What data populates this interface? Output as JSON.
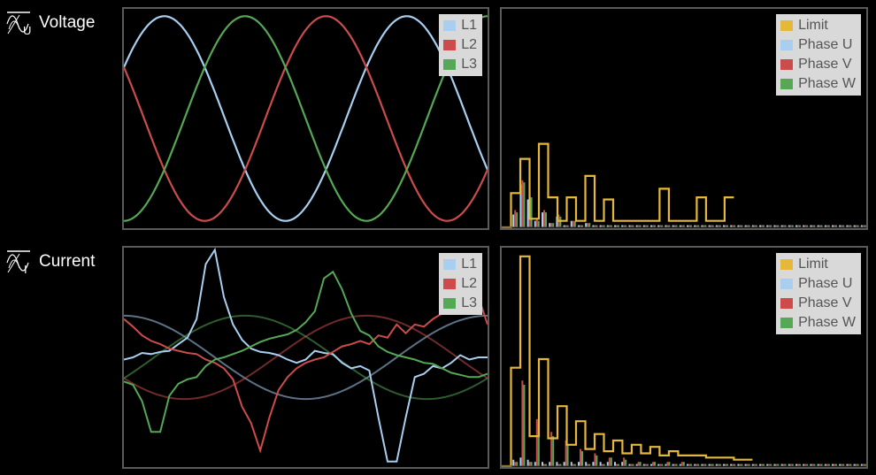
{
  "rows": [
    {
      "label": "Voltage",
      "icon": "sine-voltage-icon"
    },
    {
      "label": "Current",
      "icon": "sine-current-icon"
    }
  ],
  "colors": {
    "L1": "#a8cff0",
    "L2": "#cc4c4c",
    "L3": "#55a855",
    "limit": "#e6b83a",
    "frame": "#5a5a5a"
  },
  "chart_data": [
    {
      "type": "line",
      "id": "voltage-waveform",
      "title": "Voltage",
      "xlabel": "",
      "ylabel": "",
      "x": [
        0,
        1,
        2,
        3,
        4,
        5,
        6,
        7,
        8,
        9,
        10,
        11,
        12,
        13,
        14,
        15,
        16,
        17,
        18,
        19,
        20,
        21,
        22,
        23,
        24,
        25,
        26,
        27,
        28,
        29,
        30,
        31,
        32,
        33,
        34,
        35,
        36,
        37,
        38,
        39,
        40,
        41,
        42,
        43,
        44,
        45,
        46,
        47,
        48,
        49,
        50,
        51,
        52,
        53,
        54,
        55,
        56,
        57,
        58,
        59,
        60
      ],
      "ylim": [
        -1.05,
        1.05
      ],
      "series": [
        {
          "name": "L1",
          "kind": "sine",
          "amp": 0.98,
          "phase_deg": 30,
          "periods": 1.5
        },
        {
          "name": "L2",
          "kind": "sine",
          "amp": 0.98,
          "phase_deg": 150,
          "periods": 1.5
        },
        {
          "name": "L3",
          "kind": "sine",
          "amp": 0.98,
          "phase_deg": 270,
          "periods": 1.5
        }
      ],
      "legend": [
        "L1",
        "L2",
        "L3"
      ],
      "legend_position": "top-right"
    },
    {
      "type": "bar",
      "id": "voltage-harmonics",
      "legend": [
        "Limit",
        "Phase U",
        "Phase V",
        "Phase W"
      ],
      "legend_position": "top-right",
      "ylim": [
        0,
        100
      ],
      "limit": [
        0,
        16,
        32,
        4,
        39,
        14,
        3,
        14,
        3,
        24,
        3,
        13,
        3,
        3,
        3,
        3,
        3,
        18,
        3,
        3,
        3,
        14,
        3,
        3,
        14
      ],
      "phase_u": [
        0,
        6,
        20,
        13,
        3,
        7,
        2,
        5,
        1,
        3,
        1,
        2,
        1,
        1,
        1,
        1,
        1,
        1,
        1,
        1,
        1,
        1,
        1,
        1,
        1,
        1,
        1,
        1,
        1,
        1,
        1,
        1,
        1,
        1,
        1,
        1,
        1,
        1,
        1,
        1,
        1,
        1,
        1,
        1,
        1,
        1,
        1,
        1,
        1,
        1
      ],
      "phase_v": [
        0,
        8,
        22,
        15,
        4,
        8,
        2,
        6,
        1,
        3,
        1,
        2,
        1,
        1,
        1,
        1,
        1,
        1,
        1,
        1,
        1,
        1,
        1,
        1,
        1,
        1,
        1,
        1,
        1,
        1,
        1,
        1,
        1,
        1,
        1,
        1,
        1,
        1,
        1,
        1,
        1,
        1,
        1,
        1,
        1,
        1,
        1,
        1,
        1,
        1
      ],
      "phase_w": [
        0,
        7,
        21,
        14,
        3,
        7,
        2,
        5,
        1,
        3,
        1,
        2,
        1,
        1,
        1,
        1,
        1,
        1,
        1,
        1,
        1,
        1,
        1,
        1,
        1,
        1,
        1,
        1,
        1,
        1,
        1,
        1,
        1,
        1,
        1,
        1,
        1,
        1,
        1,
        1,
        1,
        1,
        1,
        1,
        1,
        1,
        1,
        1,
        1,
        1
      ]
    },
    {
      "type": "line",
      "id": "current-waveform",
      "title": "Current",
      "xlabel": "",
      "ylabel": "",
      "ylim": [
        -1.0,
        1.0
      ],
      "series": [
        {
          "name": "L1",
          "values": [
            -0.02,
            0.0,
            0.04,
            0.03,
            0.05,
            0.06,
            0.12,
            0.18,
            0.35,
            0.85,
            0.98,
            0.55,
            0.3,
            0.16,
            0.08,
            0.05,
            0.04,
            0.02,
            -0.02,
            -0.05,
            -0.02,
            0.06,
            0.04,
            0.03,
            -0.05,
            -0.1,
            -0.08,
            -0.12,
            -0.55,
            -0.95,
            -0.95,
            -0.55,
            -0.18,
            -0.15,
            -0.08,
            -0.1,
            -0.05,
            0.02,
            -0.02,
            0.0,
            0.0
          ]
        },
        {
          "name": "L2",
          "values": [
            0.35,
            0.28,
            0.2,
            0.15,
            0.12,
            0.08,
            0.06,
            0.04,
            0.03,
            -0.02,
            -0.05,
            -0.1,
            -0.2,
            -0.45,
            -0.6,
            -0.85,
            -0.55,
            -0.3,
            -0.18,
            -0.1,
            -0.05,
            -0.02,
            0.0,
            0.05,
            0.1,
            0.12,
            0.15,
            0.12,
            0.2,
            0.18,
            0.3,
            0.22,
            0.3,
            0.28,
            0.35,
            0.4,
            0.45,
            0.5,
            0.55,
            0.55,
            0.3
          ]
        },
        {
          "name": "L3",
          "values": [
            -0.22,
            -0.25,
            -0.4,
            -0.68,
            -0.68,
            -0.35,
            -0.24,
            -0.2,
            -0.18,
            -0.08,
            -0.02,
            0.0,
            0.03,
            0.06,
            0.1,
            0.14,
            0.17,
            0.19,
            0.21,
            0.25,
            0.32,
            0.42,
            0.72,
            0.78,
            0.62,
            0.4,
            0.24,
            0.2,
            0.1,
            0.05,
            0.02,
            0.0,
            -0.02,
            -0.05,
            -0.06,
            -0.1,
            -0.14,
            -0.16,
            -0.18,
            -0.18,
            -0.15
          ]
        }
      ],
      "fundamental": [
        {
          "name": "L1",
          "amp": 0.38,
          "phase_deg": 90
        },
        {
          "name": "L2",
          "amp": 0.38,
          "phase_deg": -150
        },
        {
          "name": "L3",
          "amp": 0.38,
          "phase_deg": -30
        }
      ],
      "legend": [
        "L1",
        "L2",
        "L3"
      ],
      "legend_position": "top-right"
    },
    {
      "type": "bar",
      "id": "current-harmonics",
      "legend": [
        "Limit",
        "Phase U",
        "Phase V",
        "Phase W"
      ],
      "legend_position": "top-right",
      "ylim": [
        0,
        100
      ],
      "limit": [
        0,
        46,
        98,
        14,
        50,
        13,
        28,
        10,
        21,
        8,
        15,
        7,
        12,
        6,
        10,
        6,
        9,
        5,
        7,
        5,
        5,
        5,
        4,
        4,
        4,
        3,
        3
      ],
      "phase_u": [
        0,
        3,
        4,
        3,
        2,
        2,
        2,
        2,
        2,
        2,
        2,
        2,
        2,
        2,
        2,
        2,
        2,
        1,
        1,
        1,
        1,
        1,
        1,
        1,
        1,
        1,
        1,
        1,
        1,
        1,
        1,
        1,
        1,
        1,
        1,
        1,
        1,
        1,
        1,
        1,
        1,
        1,
        1,
        1,
        1,
        1,
        1,
        1,
        1,
        1
      ],
      "phase_v": [
        0,
        2,
        40,
        2,
        22,
        1,
        16,
        1,
        12,
        1,
        8,
        1,
        6,
        1,
        4,
        1,
        4,
        1,
        2,
        1,
        2,
        1,
        2,
        1,
        2,
        1,
        1,
        1,
        1,
        1,
        1,
        1,
        1,
        1,
        1,
        1,
        1,
        1,
        1,
        1,
        1,
        1,
        1,
        1,
        1,
        1,
        1,
        1,
        1,
        1
      ],
      "phase_w": [
        0,
        2,
        38,
        2,
        20,
        1,
        14,
        1,
        10,
        1,
        7,
        1,
        5,
        1,
        4,
        1,
        3,
        1,
        2,
        1,
        2,
        1,
        2,
        1,
        2,
        1,
        1,
        1,
        1,
        1,
        1,
        1,
        1,
        1,
        1,
        1,
        1,
        1,
        1,
        1,
        1,
        1,
        1,
        1,
        1,
        1,
        1,
        1,
        1,
        1
      ]
    }
  ]
}
